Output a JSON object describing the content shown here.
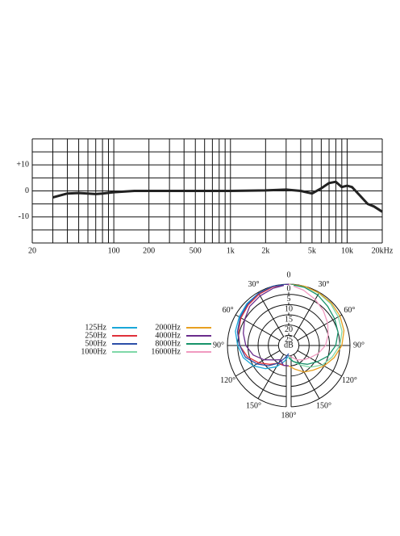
{
  "chart_data": [
    {
      "type": "line",
      "xscale": "log",
      "x": [
        30,
        40,
        50,
        60,
        70,
        80,
        100,
        150,
        200,
        500,
        1000,
        2000,
        3000,
        4000,
        5000,
        6000,
        7000,
        8000,
        9000,
        10000,
        11000,
        13000,
        15000,
        17000,
        20000
      ],
      "values": [
        -2.5,
        -1,
        -0.8,
        -1,
        -1.2,
        -1,
        -0.5,
        0,
        0,
        0,
        0,
        0.2,
        0.5,
        0,
        -1,
        1,
        3,
        3.5,
        1.5,
        2,
        1.5,
        -2,
        -5,
        -6,
        -8
      ],
      "color": "#222222",
      "xlim": [
        20,
        20000
      ],
      "ylim": [
        -20,
        20
      ],
      "xticks": [
        20,
        100,
        200,
        500,
        {
          "value": 1000,
          "label": "1k"
        },
        {
          "value": 2000,
          "label": "2k"
        },
        {
          "value": 5000,
          "label": "5k"
        },
        {
          "value": 10000,
          "label": "10k"
        },
        {
          "value": 20000,
          "label": "20kHz"
        }
      ],
      "yticks": [
        {
          "value": 10,
          "label": "+10"
        },
        0,
        -10
      ],
      "xgrid": [
        20,
        30,
        40,
        50,
        60,
        70,
        80,
        90,
        100,
        200,
        300,
        400,
        500,
        600,
        700,
        800,
        900,
        1000,
        2000,
        3000,
        4000,
        5000,
        6000,
        7000,
        8000,
        9000,
        10000,
        20000
      ],
      "ygrid": [
        -20,
        -15,
        -10,
        -5,
        0,
        5,
        10,
        15,
        20
      ]
    },
    {
      "type": "polar",
      "theta": [
        0,
        15,
        30,
        45,
        60,
        75,
        90,
        105,
        120,
        135,
        150,
        165,
        180
      ],
      "rlim": [
        30,
        0
      ],
      "rticks": [
        0,
        5,
        10,
        15,
        20,
        25
      ],
      "r_label": "dB",
      "thetaticks": [
        {
          "value": 0,
          "label": "0"
        },
        {
          "value": 30,
          "label": "30°"
        },
        {
          "value": 60,
          "label": "60°"
        },
        {
          "value": 90,
          "label": "90°"
        },
        {
          "value": 120,
          "label": "120°"
        },
        {
          "value": 150,
          "label": "150°"
        },
        {
          "value": 180,
          "label": "180°"
        }
      ],
      "series": [
        {
          "name": "125Hz",
          "color": "#1aa7d8",
          "side": "left",
          "values": [
            0,
            0,
            0.5,
            1,
            2,
            3,
            5,
            7,
            10,
            14,
            18,
            22,
            25
          ]
        },
        {
          "name": "250Hz",
          "color": "#e0303a",
          "side": "left",
          "values": [
            0,
            0.3,
            1,
            2,
            3,
            4.5,
            6,
            9,
            13,
            17,
            20,
            20,
            20
          ]
        },
        {
          "name": "500Hz",
          "color": "#2c4fa8",
          "side": "left",
          "values": [
            0,
            0,
            0.5,
            1.5,
            2.5,
            4,
            6,
            8,
            12,
            16,
            20,
            24,
            26
          ]
        },
        {
          "name": "1000Hz",
          "color": "#7fd8a8",
          "side": "right",
          "values": [
            0,
            0,
            0.5,
            1,
            2,
            3,
            5,
            8,
            11,
            15,
            19,
            22,
            25
          ]
        },
        {
          "name": "2000Hz",
          "color": "#e8a020",
          "side": "right",
          "values": [
            0,
            0,
            0.3,
            0.5,
            1,
            2,
            4,
            7,
            10,
            13,
            15,
            18,
            20
          ]
        },
        {
          "name": "4000Hz",
          "color": "#6a2c8c",
          "side": "left",
          "values": [
            0,
            1,
            2,
            3,
            5,
            7,
            9,
            12,
            16,
            20,
            22,
            20,
            20
          ]
        },
        {
          "name": "8000Hz",
          "color": "#17936a",
          "side": "right",
          "values": [
            0,
            0.5,
            1.5,
            3,
            4,
            5,
            7,
            10,
            14,
            17,
            20,
            22,
            24
          ]
        },
        {
          "name": "16000Hz",
          "color": "#f09ac0",
          "side": "right",
          "values": [
            0,
            2,
            4,
            6,
            8,
            10,
            12,
            15,
            18,
            20,
            22,
            24,
            25
          ]
        }
      ]
    }
  ]
}
